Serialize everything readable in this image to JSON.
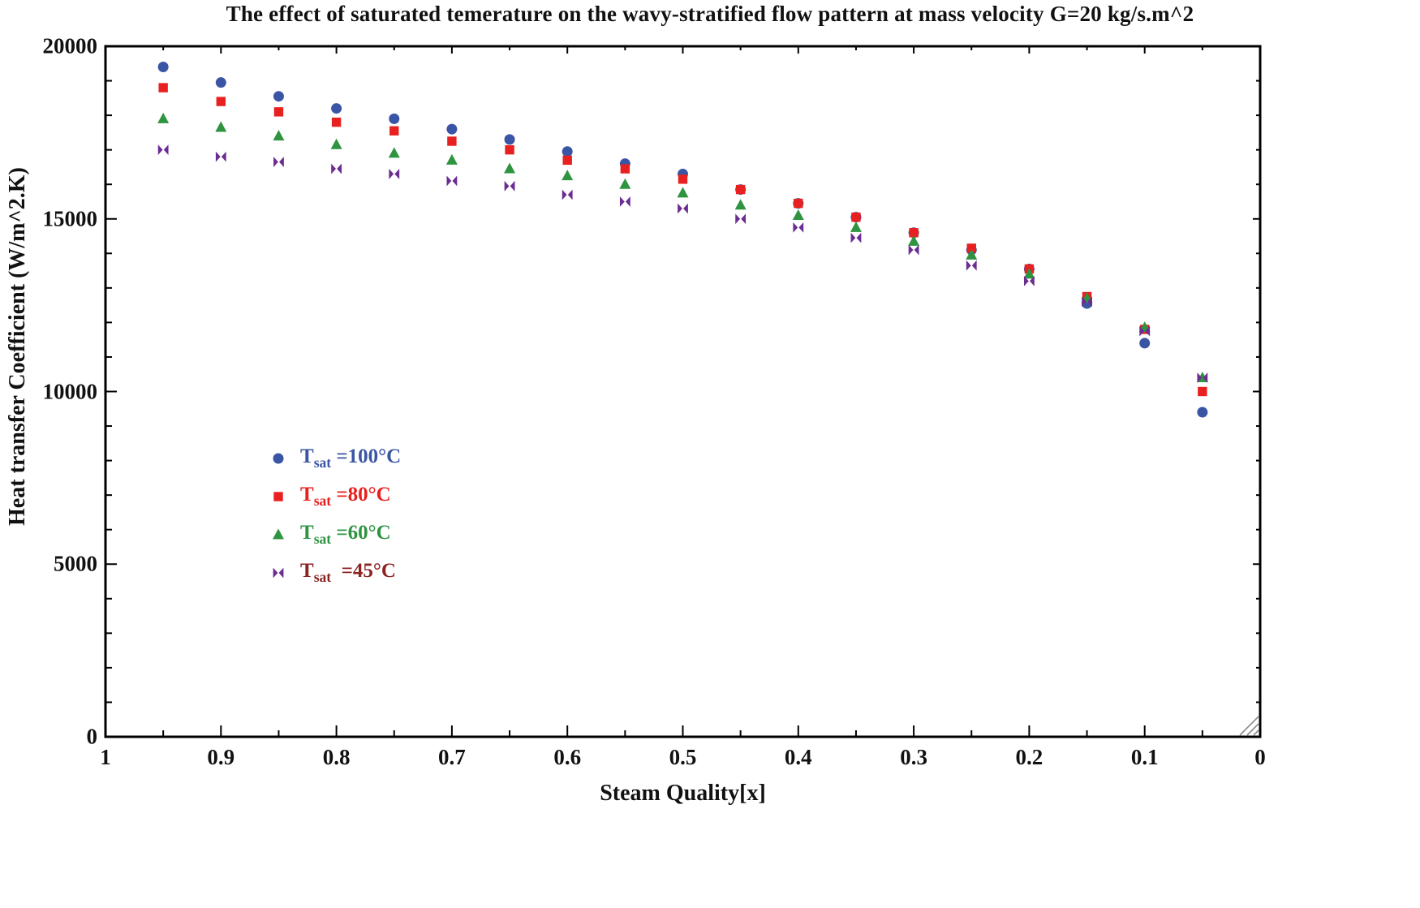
{
  "chart_data": {
    "type": "scatter",
    "title": "The effect of saturated temerature on the wavy-stratified flow pattern at mass velocity G=20 kg/s.m^2",
    "xlabel": "Steam Quality[x]",
    "ylabel": "Heat transfer Coefficient (W/m^2.K)",
    "xlim": [
      1,
      0
    ],
    "ylim": [
      0,
      20000
    ],
    "x_axis_reversed": true,
    "grid": false,
    "frame": true,
    "legend_position": "inside-left-middle",
    "x_ticks": [
      1,
      0.9,
      0.8,
      0.7,
      0.6,
      0.5,
      0.4,
      0.3,
      0.2,
      0.1,
      0
    ],
    "x_tick_labels": [
      "1",
      "0.9",
      "0.8",
      "0.7",
      "0.6",
      "0.5",
      "0.4",
      "0.3",
      "0.2",
      "0.1",
      "0"
    ],
    "y_ticks": [
      0,
      5000,
      10000,
      15000,
      20000
    ],
    "y_tick_labels": [
      "0",
      "5000",
      "10000",
      "15000",
      "20000"
    ],
    "x": [
      0.95,
      0.9,
      0.85,
      0.8,
      0.75,
      0.7,
      0.65,
      0.6,
      0.55,
      0.5,
      0.45,
      0.4,
      0.35,
      0.3,
      0.25,
      0.2,
      0.15,
      0.1,
      0.05
    ],
    "series": [
      {
        "name": "Tsat =100°C",
        "legend": {
          "pre": "T",
          "sub": "sat",
          "post": " =100°C"
        },
        "marker": "circle",
        "color": "#3a55a4",
        "label_color": "#3a55a4",
        "values": [
          19400,
          18950,
          18550,
          18200,
          17900,
          17600,
          17300,
          16950,
          16600,
          16300,
          15850,
          15450,
          15050,
          14600,
          14100,
          13550,
          12550,
          11400,
          9400
        ]
      },
      {
        "name": "Tsat =80°C",
        "legend": {
          "pre": "T",
          "sub": "sat",
          "post": " =80°C"
        },
        "marker": "square",
        "color": "#e8201f",
        "label_color": "#e8201f",
        "values": [
          18800,
          18400,
          18100,
          17800,
          17550,
          17250,
          17000,
          16700,
          16450,
          16150,
          15850,
          15450,
          15050,
          14600,
          14150,
          13550,
          12750,
          11800,
          10000
        ]
      },
      {
        "name": "Tsat =60°C",
        "legend": {
          "pre": "T",
          "sub": "sat",
          "post": " =60°C"
        },
        "marker": "triangle",
        "color": "#2e9440",
        "label_color": "#2e9440",
        "values": [
          17900,
          17650,
          17400,
          17150,
          16900,
          16700,
          16450,
          16250,
          16000,
          15750,
          15400,
          15100,
          14750,
          14350,
          13950,
          13400,
          12700,
          11850,
          10400
        ]
      },
      {
        "name": "Tsat =45°C",
        "legend": {
          "pre": "T",
          "sub": "sat",
          "post": "  =45°C"
        },
        "marker": "bowtie",
        "color": "#6c2d92",
        "label_color": "#8b2323",
        "values": [
          17000,
          16800,
          16650,
          16450,
          16300,
          16100,
          15950,
          15700,
          15500,
          15300,
          15000,
          14750,
          14450,
          14100,
          13650,
          13200,
          12600,
          11750,
          10400
        ]
      }
    ]
  }
}
